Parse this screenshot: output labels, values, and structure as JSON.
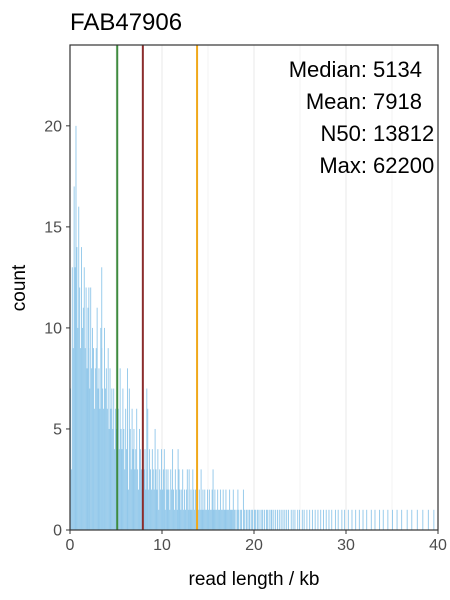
{
  "chart_data": {
    "type": "bar",
    "title": "FAB47906",
    "xlabel": "read length / kb",
    "ylabel": "count",
    "xlim": [
      0,
      40
    ],
    "ylim": [
      0,
      24
    ],
    "x_ticks": [
      0,
      10,
      20,
      30,
      40
    ],
    "y_ticks": [
      0,
      5,
      10,
      15,
      20
    ],
    "grid": true,
    "bar_color": "#92c8ea",
    "bin_width_kb": 0.1,
    "annotations": [
      {
        "label": "Median:",
        "value": "5134"
      },
      {
        "label": "Mean:",
        "value": "7918"
      },
      {
        "label": "N50:",
        "value": "13812"
      },
      {
        "label": "Max:",
        "value": "62200"
      }
    ],
    "reference_lines": [
      {
        "name": "median",
        "x": 5.134,
        "color": "#3f8b3f"
      },
      {
        "name": "mean",
        "x": 7.918,
        "color": "#8b2c2c"
      },
      {
        "name": "n50",
        "x": 13.812,
        "color": "#f0a81a"
      }
    ],
    "bins": [
      [
        0.1,
        7
      ],
      [
        0.2,
        3
      ],
      [
        0.3,
        13
      ],
      [
        0.4,
        9
      ],
      [
        0.5,
        17
      ],
      [
        0.6,
        13
      ],
      [
        0.7,
        20
      ],
      [
        0.8,
        14
      ],
      [
        0.9,
        10
      ],
      [
        1.0,
        16
      ],
      [
        1.1,
        12
      ],
      [
        1.2,
        9
      ],
      [
        1.3,
        14
      ],
      [
        1.4,
        10
      ],
      [
        1.5,
        11
      ],
      [
        1.6,
        13
      ],
      [
        1.7,
        9
      ],
      [
        1.8,
        12
      ],
      [
        1.9,
        8
      ],
      [
        2.0,
        11
      ],
      [
        2.1,
        9
      ],
      [
        2.2,
        7
      ],
      [
        2.3,
        12
      ],
      [
        2.4,
        8
      ],
      [
        2.5,
        10
      ],
      [
        2.6,
        9
      ],
      [
        2.7,
        6
      ],
      [
        2.8,
        8
      ],
      [
        2.9,
        9
      ],
      [
        3.0,
        11
      ],
      [
        3.1,
        7
      ],
      [
        3.2,
        8
      ],
      [
        3.3,
        6
      ],
      [
        3.4,
        10
      ],
      [
        3.5,
        9
      ],
      [
        3.6,
        7
      ],
      [
        3.7,
        6
      ],
      [
        3.8,
        10
      ],
      [
        3.9,
        7
      ],
      [
        4.0,
        8
      ],
      [
        4.1,
        6
      ],
      [
        4.2,
        9
      ],
      [
        4.3,
        5
      ],
      [
        4.4,
        8
      ],
      [
        4.5,
        6
      ],
      [
        4.6,
        7
      ],
      [
        4.7,
        5
      ],
      [
        4.8,
        7
      ],
      [
        4.9,
        4
      ],
      [
        5.0,
        6
      ],
      [
        5.1,
        5
      ],
      [
        5.2,
        3
      ],
      [
        5.3,
        6
      ],
      [
        5.4,
        4
      ],
      [
        5.5,
        8
      ],
      [
        5.6,
        5
      ],
      [
        5.7,
        4
      ],
      [
        5.8,
        7
      ],
      [
        5.9,
        5
      ],
      [
        6.0,
        3
      ],
      [
        6.1,
        6
      ],
      [
        6.2,
        4
      ],
      [
        6.3,
        5
      ],
      [
        6.4,
        2
      ],
      [
        6.5,
        7
      ],
      [
        6.6,
        5
      ],
      [
        6.7,
        3
      ],
      [
        6.8,
        6
      ],
      [
        6.9,
        4
      ],
      [
        7.0,
        5
      ],
      [
        7.1,
        3
      ],
      [
        7.2,
        4
      ],
      [
        7.3,
        6
      ],
      [
        7.4,
        3
      ],
      [
        7.5,
        2
      ],
      [
        7.6,
        5
      ],
      [
        7.7,
        4
      ],
      [
        7.8,
        3
      ],
      [
        7.9,
        2
      ],
      [
        8.0,
        5
      ],
      [
        8.1,
        3
      ],
      [
        8.2,
        4
      ],
      [
        8.3,
        2
      ],
      [
        8.4,
        3
      ],
      [
        8.5,
        6
      ],
      [
        8.6,
        2
      ],
      [
        8.7,
        4
      ],
      [
        8.8,
        3
      ],
      [
        8.9,
        2
      ],
      [
        9.0,
        4
      ],
      [
        9.1,
        3
      ],
      [
        9.2,
        2
      ],
      [
        9.3,
        5
      ],
      [
        9.4,
        3
      ],
      [
        9.5,
        2
      ],
      [
        9.6,
        4
      ],
      [
        9.7,
        1
      ],
      [
        9.8,
        3
      ],
      [
        9.9,
        2
      ],
      [
        10.0,
        4
      ],
      [
        10.1,
        2
      ],
      [
        10.2,
        3
      ],
      [
        10.3,
        2
      ],
      [
        10.4,
        1
      ],
      [
        10.5,
        3
      ],
      [
        10.6,
        2
      ],
      [
        10.7,
        3
      ],
      [
        10.8,
        2
      ],
      [
        10.9,
        1
      ],
      [
        11.0,
        3
      ],
      [
        11.1,
        2
      ],
      [
        11.2,
        4
      ],
      [
        11.3,
        2
      ],
      [
        11.4,
        1
      ],
      [
        11.5,
        3
      ],
      [
        11.6,
        2
      ],
      [
        11.7,
        1
      ],
      [
        11.8,
        2
      ],
      [
        11.9,
        3
      ],
      [
        12.0,
        2
      ],
      [
        12.1,
        1
      ],
      [
        12.2,
        2
      ],
      [
        12.3,
        3
      ],
      [
        12.4,
        1
      ],
      [
        12.5,
        2
      ],
      [
        12.6,
        1
      ],
      [
        12.7,
        2
      ],
      [
        12.8,
        3
      ],
      [
        12.9,
        1
      ],
      [
        13.0,
        2
      ],
      [
        13.1,
        1
      ],
      [
        13.2,
        2
      ],
      [
        13.3,
        1
      ],
      [
        13.4,
        3
      ],
      [
        13.5,
        2
      ],
      [
        13.6,
        1
      ],
      [
        13.7,
        2
      ],
      [
        13.8,
        1
      ],
      [
        13.9,
        2
      ],
      [
        14.0,
        1
      ],
      [
        14.1,
        2
      ],
      [
        14.2,
        1
      ],
      [
        14.3,
        3
      ],
      [
        14.4,
        1
      ],
      [
        14.5,
        2
      ],
      [
        14.6,
        1
      ],
      [
        14.7,
        2
      ],
      [
        14.8,
        1
      ],
      [
        14.9,
        1
      ],
      [
        15.0,
        2
      ],
      [
        15.1,
        1
      ],
      [
        15.2,
        2
      ],
      [
        15.3,
        1
      ],
      [
        15.4,
        1
      ],
      [
        15.5,
        2
      ],
      [
        15.6,
        1
      ],
      [
        15.7,
        1
      ],
      [
        15.8,
        2
      ],
      [
        15.9,
        1
      ],
      [
        16.0,
        1
      ],
      [
        16.1,
        2
      ],
      [
        16.2,
        1
      ],
      [
        16.3,
        1
      ],
      [
        16.4,
        2
      ],
      [
        16.5,
        1
      ],
      [
        16.6,
        1
      ],
      [
        16.7,
        2
      ],
      [
        16.8,
        1
      ],
      [
        16.9,
        1
      ],
      [
        17.0,
        2
      ],
      [
        17.1,
        1
      ],
      [
        17.2,
        1
      ],
      [
        17.3,
        1
      ],
      [
        17.4,
        2
      ],
      [
        17.5,
        1
      ],
      [
        17.6,
        1
      ],
      [
        17.7,
        1
      ],
      [
        17.8,
        2
      ],
      [
        17.9,
        1
      ],
      [
        18.0,
        1
      ],
      [
        18.2,
        1
      ],
      [
        18.3,
        2
      ],
      [
        18.4,
        1
      ],
      [
        18.6,
        1
      ],
      [
        18.7,
        1
      ],
      [
        18.9,
        2
      ],
      [
        19.0,
        1
      ],
      [
        19.2,
        1
      ],
      [
        19.3,
        1
      ],
      [
        19.5,
        1
      ],
      [
        19.6,
        1
      ],
      [
        19.8,
        1
      ],
      [
        19.9,
        1
      ],
      [
        20.1,
        1
      ],
      [
        20.2,
        1
      ],
      [
        20.4,
        1
      ],
      [
        20.5,
        1
      ],
      [
        20.7,
        1
      ],
      [
        20.9,
        1
      ],
      [
        21.0,
        1
      ],
      [
        21.2,
        1
      ],
      [
        21.4,
        1
      ],
      [
        21.5,
        1
      ],
      [
        21.7,
        1
      ],
      [
        21.9,
        1
      ],
      [
        22.0,
        1
      ],
      [
        22.2,
        1
      ],
      [
        22.4,
        1
      ],
      [
        22.6,
        1
      ],
      [
        22.8,
        1
      ],
      [
        23.0,
        1
      ],
      [
        23.2,
        1
      ],
      [
        23.4,
        1
      ],
      [
        23.6,
        1
      ],
      [
        23.8,
        1
      ],
      [
        24.1,
        1
      ],
      [
        24.3,
        1
      ],
      [
        24.5,
        1
      ],
      [
        24.8,
        1
      ],
      [
        25.0,
        1
      ],
      [
        25.3,
        1
      ],
      [
        25.5,
        1
      ],
      [
        25.8,
        1
      ],
      [
        26.1,
        1
      ],
      [
        26.4,
        1
      ],
      [
        26.7,
        1
      ],
      [
        27.0,
        1
      ],
      [
        27.3,
        1
      ],
      [
        27.6,
        1
      ],
      [
        27.9,
        1
      ],
      [
        28.2,
        1
      ],
      [
        28.5,
        1
      ],
      [
        28.9,
        1
      ],
      [
        29.2,
        1
      ],
      [
        29.6,
        1
      ],
      [
        29.9,
        1
      ],
      [
        30.3,
        1
      ],
      [
        30.7,
        1
      ],
      [
        31.1,
        1
      ],
      [
        31.5,
        1
      ],
      [
        31.9,
        1
      ],
      [
        32.3,
        1
      ],
      [
        32.8,
        1
      ],
      [
        33.2,
        1
      ],
      [
        33.7,
        1
      ],
      [
        34.1,
        1
      ],
      [
        34.6,
        1
      ],
      [
        35.1,
        1
      ],
      [
        35.6,
        1
      ],
      [
        36.1,
        1
      ],
      [
        36.7,
        1
      ],
      [
        37.2,
        1
      ],
      [
        37.8,
        1
      ],
      [
        38.4,
        1
      ],
      [
        39.0,
        1
      ],
      [
        39.6,
        1
      ],
      [
        6.3,
        8
      ],
      [
        8.4,
        7
      ],
      [
        10.3,
        4
      ],
      [
        11.8,
        4
      ],
      [
        13.0,
        3
      ],
      [
        15.6,
        3
      ],
      [
        2.1,
        12
      ],
      [
        3.5,
        13
      ]
    ]
  }
}
